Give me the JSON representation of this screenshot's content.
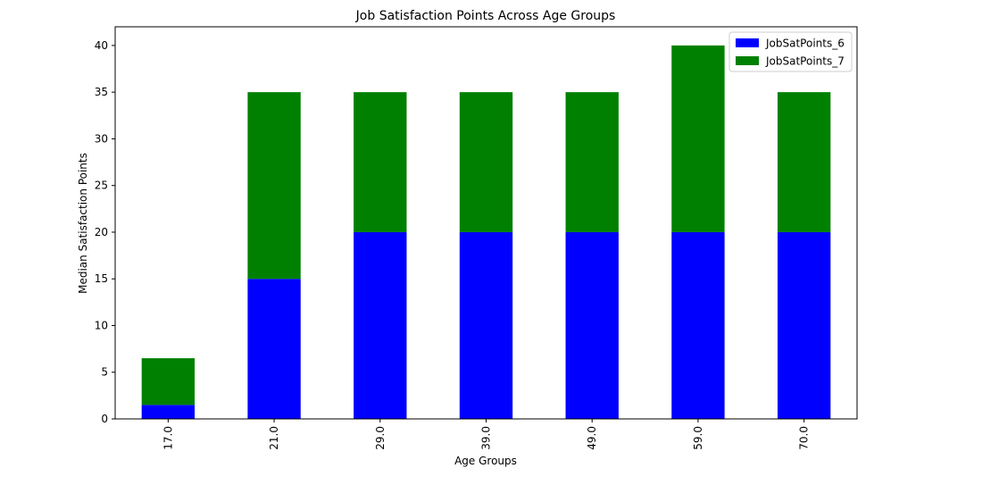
{
  "chart_data": {
    "type": "bar",
    "stacked": true,
    "title": "Job Satisfaction Points Across Age Groups",
    "xlabel": "Age Groups",
    "ylabel": "Median Satisfaction Points",
    "categories": [
      "17.0",
      "21.0",
      "29.0",
      "39.0",
      "49.0",
      "59.0",
      "70.0"
    ],
    "series": [
      {
        "name": "JobSatPoints_6",
        "color": "#0000ff",
        "values": [
          1.5,
          15,
          20,
          20,
          20,
          20,
          20
        ]
      },
      {
        "name": "JobSatPoints_7",
        "color": "#008000",
        "values": [
          5,
          20,
          15,
          15,
          15,
          20,
          15
        ]
      }
    ],
    "ylim": [
      0,
      42
    ],
    "yticks": [
      0,
      5,
      10,
      15,
      20,
      25,
      30,
      35,
      40
    ],
    "xtick_rotation": "vertical",
    "grid": false,
    "legend": "top-right"
  }
}
